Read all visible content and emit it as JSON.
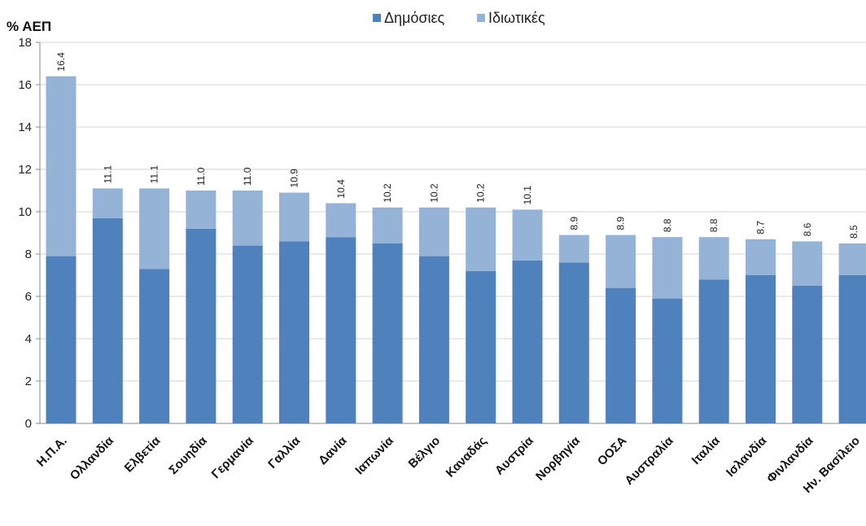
{
  "colors": {
    "public": "#4f81bd",
    "private": "#95b3d7",
    "grid": "#d4d4d4",
    "axis": "#888888"
  },
  "chart_data": {
    "type": "bar",
    "stacked": true,
    "ylabel": "% ΑΕΠ",
    "ylim": [
      0,
      18
    ],
    "yticks": [
      0,
      2,
      4,
      6,
      8,
      10,
      12,
      14,
      16,
      18
    ],
    "grid": true,
    "legend_position": "top-center",
    "categories": [
      "Η.Π.Α.",
      "Ολλανδία",
      "Ελβετία",
      "Σουηδία",
      "Γερμανία",
      "Γαλλία",
      "Δανία",
      "Ιαπωνία",
      "Βέλγιο",
      "Καναδάς",
      "Αυστρία",
      "Νορβηγία",
      "ΟΟΣΑ",
      "Αυστραλία",
      "Ιταλία",
      "Ισλανδία",
      "Φινλανδία",
      "Ην. Βασίλειο"
    ],
    "series": [
      {
        "name": "Δημόσιες",
        "color": "#4f81bd",
        "values": [
          7.9,
          9.7,
          7.3,
          9.2,
          8.4,
          8.6,
          8.8,
          8.5,
          7.9,
          7.2,
          7.7,
          7.6,
          6.4,
          5.9,
          6.8,
          7.0,
          6.5,
          7.0
        ]
      },
      {
        "name": "Ιδιωτικές",
        "color": "#95b3d7",
        "values": [
          8.5,
          1.4,
          3.8,
          1.8,
          2.6,
          2.3,
          1.6,
          1.7,
          2.3,
          3.0,
          2.4,
          1.3,
          2.5,
          2.9,
          2.0,
          1.7,
          2.1,
          1.5
        ]
      }
    ],
    "totals": [
      "16.4",
      "11.1",
      "11.1",
      "11.0",
      "11.0",
      "10.9",
      "10.4",
      "10.2",
      "10.2",
      "10.2",
      "10.1",
      "8.9",
      "8.9",
      "8.8",
      "8.8",
      "8.7",
      "8.6",
      "8.5"
    ]
  }
}
